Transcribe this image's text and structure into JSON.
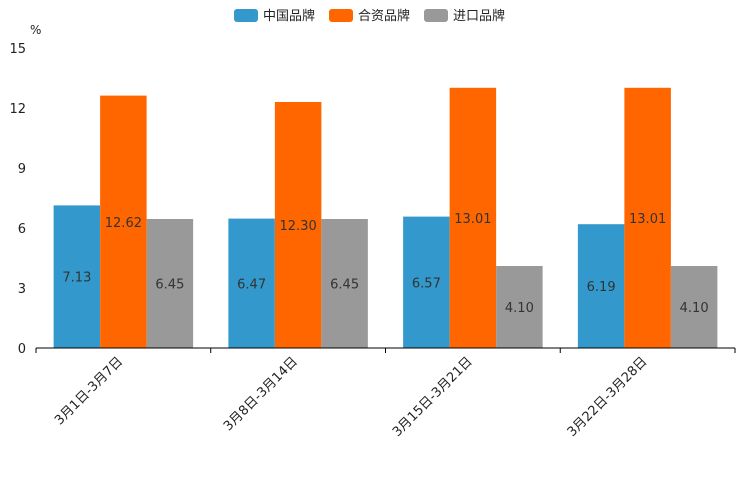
{
  "chart_data": {
    "type": "bar",
    "title": "",
    "xlabel": "",
    "ylabel": "%",
    "ylim": [
      0,
      15
    ],
    "yticks": [
      "0",
      "3",
      "6",
      "9",
      "12",
      "15"
    ],
    "categories": [
      "3月1日-3月7日",
      "3月8日-3月14日",
      "3月15日-3月21日",
      "3月22日-3月28日"
    ],
    "series": [
      {
        "name": "中国品牌",
        "color": "#3399cc",
        "values": [
          7.13,
          6.47,
          6.57,
          6.19
        ],
        "labels": [
          "7.13",
          "6.47",
          "6.57",
          "6.19"
        ]
      },
      {
        "name": "合资品牌",
        "color": "#ff6600",
        "values": [
          12.62,
          12.3,
          13.01,
          13.01
        ],
        "labels": [
          "12.62",
          "12.30",
          "13.01",
          "13.01"
        ]
      },
      {
        "name": "进口品牌",
        "color": "#999999",
        "values": [
          6.45,
          6.45,
          4.1,
          4.1
        ],
        "labels": [
          "6.45",
          "6.45",
          "4.10",
          "4.10"
        ]
      }
    ],
    "legend_position": "top-center",
    "grid": false
  }
}
